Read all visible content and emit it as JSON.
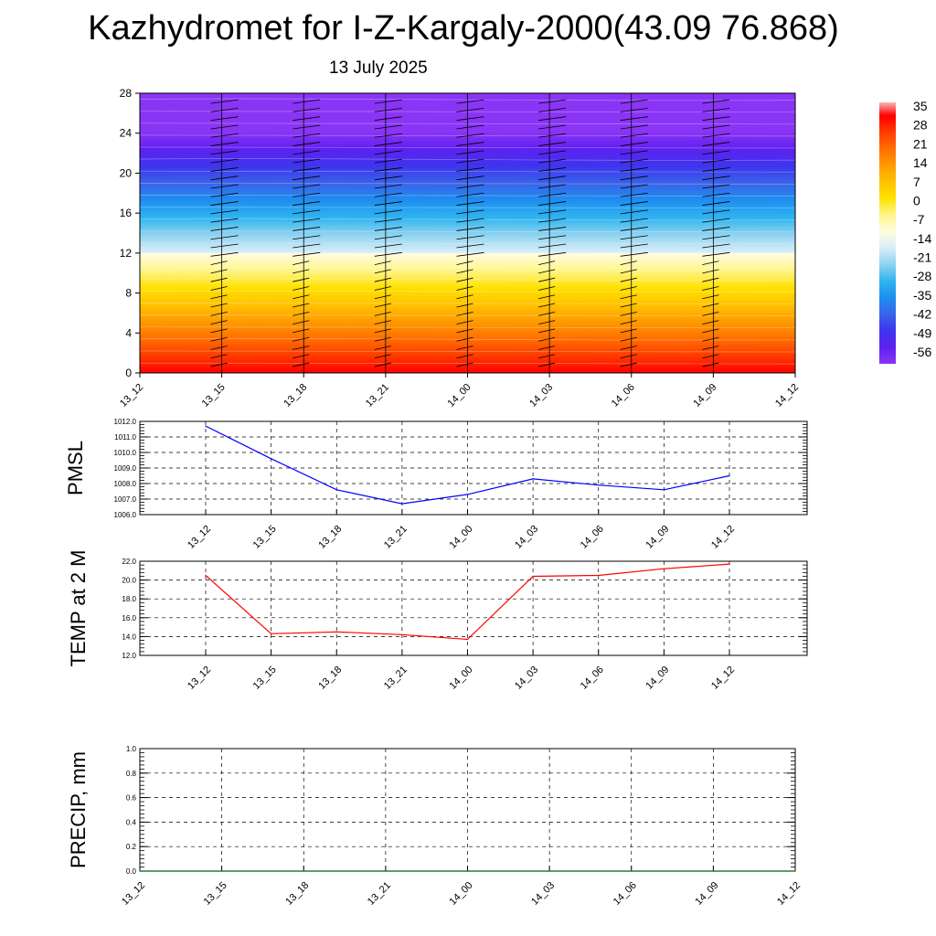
{
  "title": "Kazhydromet for I-Z-Kargaly-2000(43.09 76.868)",
  "subtitle": "13 July 2025",
  "chart_data": [
    {
      "type": "heatmap",
      "name": "vertical cross-section",
      "x_ticks": [
        "13_12",
        "13_15",
        "13_18",
        "13_21",
        "14_00",
        "14_03",
        "14_06",
        "14_09",
        "14_12"
      ],
      "ylim": [
        0,
        28
      ],
      "y_ticks": [
        "0",
        "4",
        "8",
        "12",
        "16",
        "20",
        "24",
        "28"
      ],
      "colorbar_labels": [
        "35",
        "28",
        "21",
        "14",
        "7",
        "0",
        "-7",
        "-14",
        "-21",
        "-28",
        "-35",
        "-42",
        "-49",
        "-56"
      ],
      "colors": {
        "warm": [
          "#ff0000",
          "#ff3a00",
          "#ff6e00",
          "#ff9a00",
          "#ffc200",
          "#ffe100",
          "#fff58a",
          "#fffce0"
        ],
        "cold": [
          "#d8eef8",
          "#8fd3f0",
          "#2fb4f0",
          "#1d8ff0",
          "#3a63e8",
          "#3d35ee",
          "#6020f0",
          "#8a35f5"
        ]
      },
      "wind_barbs": true
    },
    {
      "type": "line",
      "ylabel": "PMSL",
      "x": [
        "13_12",
        "13_15",
        "13_18",
        "13_21",
        "14_00",
        "14_03",
        "14_06",
        "14_09",
        "14_12"
      ],
      "values": [
        1011.7,
        1009.6,
        1007.6,
        1006.7,
        1007.3,
        1008.3,
        1007.9,
        1007.6,
        1008.5
      ],
      "ylim": [
        1006.0,
        1012.0
      ],
      "y_ticks": [
        "1006.0",
        "1007.0",
        "1008.0",
        "1009.0",
        "1010.0",
        "1011.0",
        "1012.0"
      ],
      "color": "#0000ff",
      "grid": true
    },
    {
      "type": "line",
      "ylabel": "TEMP at 2 M",
      "x": [
        "13_12",
        "13_15",
        "13_18",
        "13_21",
        "14_00",
        "14_03",
        "14_06",
        "14_09",
        "14_12"
      ],
      "values": [
        20.5,
        14.3,
        14.5,
        14.2,
        13.7,
        20.4,
        20.5,
        21.2,
        21.7
      ],
      "ylim": [
        12.0,
        22.0
      ],
      "y_ticks": [
        "12.0",
        "14.0",
        "16.0",
        "18.0",
        "20.0",
        "22.0"
      ],
      "color": "#ff0000",
      "grid": true
    },
    {
      "type": "line",
      "ylabel": "PRECIP, mm",
      "x": [
        "13_12",
        "13_15",
        "13_18",
        "13_21",
        "14_00",
        "14_03",
        "14_06",
        "14_09",
        "14_12"
      ],
      "x_ticks": [
        "13_12",
        "13_15",
        "13_18",
        "13_21",
        "14_00",
        "14_03",
        "14_06",
        "14_09",
        "14_12"
      ],
      "values": [
        0,
        0,
        0,
        0,
        0,
        0,
        0,
        0,
        0
      ],
      "ylim": [
        0.0,
        1.0
      ],
      "y_ticks": [
        "0.0",
        "0.2",
        "0.4",
        "0.6",
        "0.8",
        "1.0"
      ],
      "color": "#006400",
      "grid": true
    }
  ]
}
